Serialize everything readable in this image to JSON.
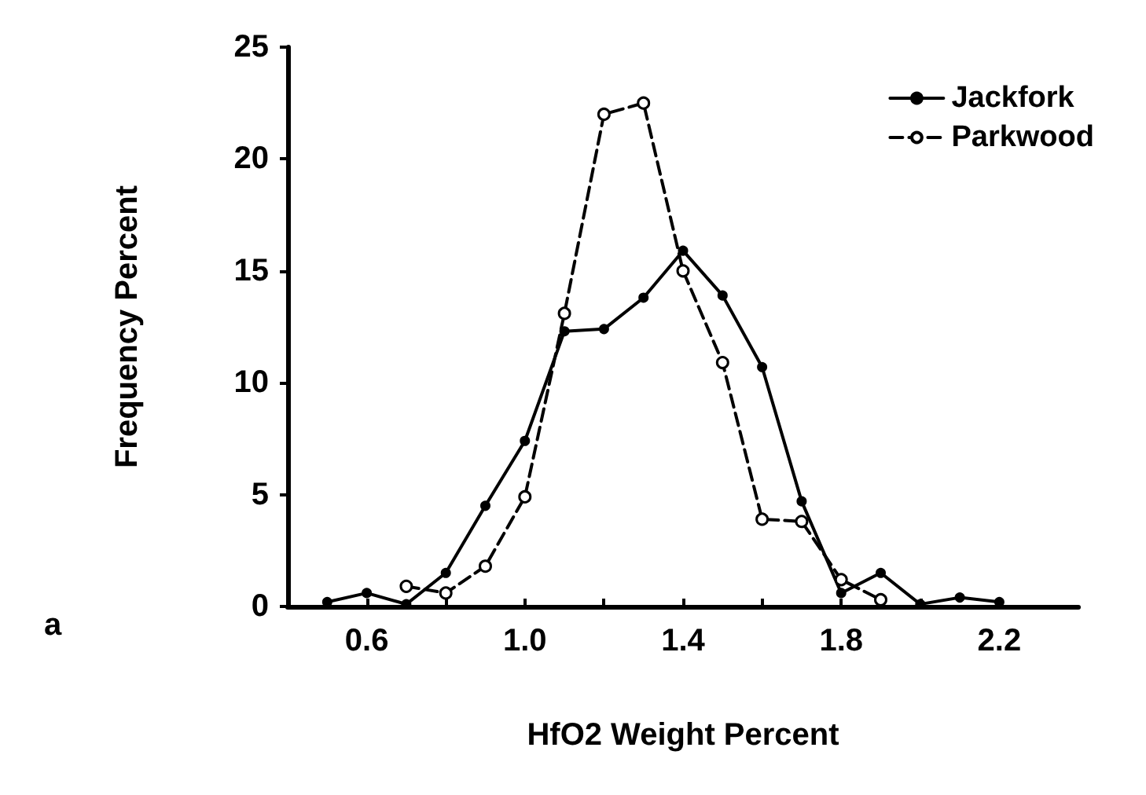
{
  "chart_data": {
    "type": "line",
    "xlabel": "HfO2 Weight Percent",
    "ylabel": "Frequency Percent",
    "annotations": [
      "a"
    ],
    "xlim": [
      0.4,
      2.4
    ],
    "xticks": [
      {
        "value": 0.6,
        "label": "0.6"
      },
      {
        "value": 0.8,
        "label": null
      },
      {
        "value": 1.0,
        "label": "1.0"
      },
      {
        "value": 1.2,
        "label": null
      },
      {
        "value": 1.4,
        "label": "1.4"
      },
      {
        "value": 1.6,
        "label": null
      },
      {
        "value": 1.8,
        "label": "1.8"
      },
      {
        "value": 2.0,
        "label": null
      },
      {
        "value": 2.2,
        "label": "2.2"
      }
    ],
    "ylim": [
      0,
      25
    ],
    "yticks": [
      0,
      5,
      10,
      15,
      20,
      25
    ],
    "grid": false,
    "legend": "top right",
    "marker": "circle",
    "series": [
      {
        "name": "Jackfork",
        "color": "#000000",
        "line_style": "solid",
        "x": [
          0.5,
          0.6,
          0.7,
          0.8,
          0.9,
          1.0,
          1.1,
          1.2,
          1.3,
          1.4,
          1.5,
          1.6,
          1.7,
          1.8,
          1.9,
          2.0,
          2.1,
          2.2
        ],
        "values": [
          0.2,
          0.6,
          0.1,
          1.5,
          4.5,
          7.4,
          12.3,
          12.4,
          13.8,
          15.9,
          13.9,
          10.7,
          4.7,
          0.6,
          1.5,
          0.1,
          0.4,
          0.2
        ]
      },
      {
        "name": "Parkwood",
        "color": "#000000",
        "line_style": "dashed",
        "x": [
          0.7,
          0.8,
          0.9,
          1.0,
          1.1,
          1.2,
          1.3,
          1.4,
          1.5,
          1.6,
          1.7,
          1.8,
          1.9
        ],
        "values": [
          0.9,
          0.6,
          1.8,
          4.9,
          13.1,
          22.0,
          22.5,
          15.0,
          10.9,
          3.9,
          3.8,
          1.2,
          0.3
        ]
      }
    ]
  }
}
